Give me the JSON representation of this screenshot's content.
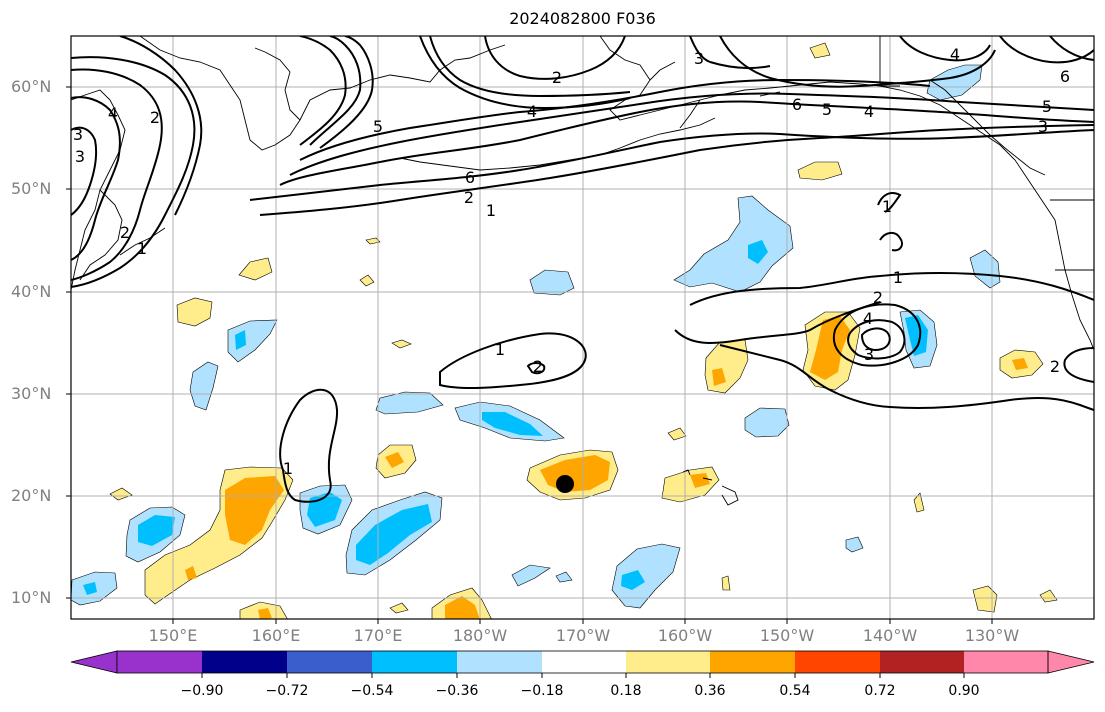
{
  "title": "2024082800 F036",
  "lat_labels": [
    "60°N",
    "50°N",
    "40°N",
    "30°N",
    "20°N",
    "10°N"
  ],
  "lon_labels": [
    "150°E",
    "160°E",
    "170°E",
    "180°W",
    "170°W",
    "160°W",
    "150°W",
    "140°W",
    "130°W"
  ],
  "colorbar": {
    "ticks": [
      "−0.90",
      "−0.72",
      "−0.54",
      "−0.36",
      "−0.18",
      "0.18",
      "0.36",
      "0.54",
      "0.72",
      "0.90"
    ],
    "colors": [
      "#9932cc",
      "#00008b",
      "#3a5fcd",
      "#00bfff",
      "#b0e2ff",
      "#ffffff",
      "#ffec8b",
      "#ffa500",
      "#ff4500",
      "#b22222",
      "#ff88aa"
    ]
  },
  "contour_labels": [
    "2",
    "4",
    "6",
    "5",
    "4",
    "3",
    "2",
    "1",
    "5",
    "6",
    "3",
    "2",
    "4",
    "1",
    "2",
    "3",
    "1",
    "1",
    "4",
    "2",
    "1",
    "2",
    "3",
    "2",
    "1",
    "3",
    "5",
    "6",
    "4"
  ],
  "marker": "storm-center-dot"
}
